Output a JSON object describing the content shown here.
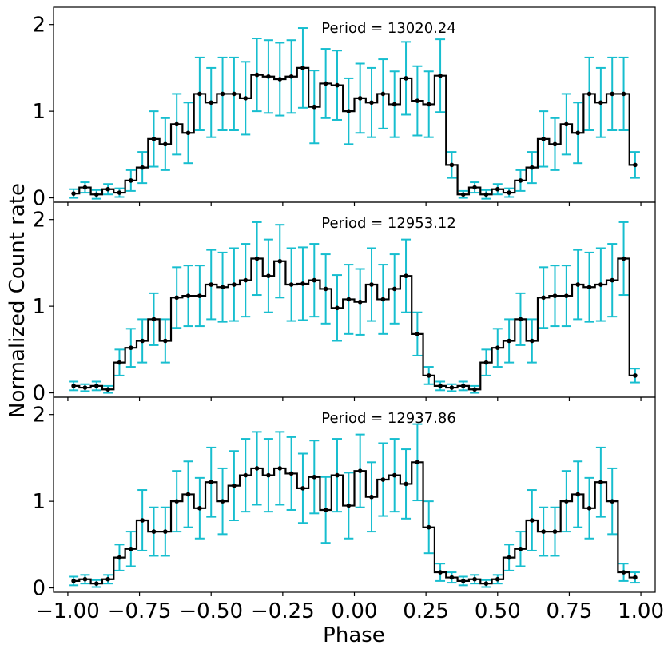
{
  "figure": {
    "ylabel": "Normalized Count rate",
    "xlabel": "Phase",
    "x_tick_labels": [
      "−1.00",
      "−0.75",
      "−0.50",
      "−0.25",
      "0.00",
      "0.25",
      "0.50",
      "0.75",
      "1.00"
    ],
    "colors": {
      "line": "#000000",
      "errorbar": "#17becf",
      "marker": "#000000"
    }
  },
  "chart_data": [
    {
      "type": "line",
      "style": "step with error bars",
      "title": "Period = 13020.24",
      "xlabel": "Phase",
      "ylabel": "Normalized Count rate",
      "xlim": [
        -1.05,
        1.05
      ],
      "ylim": [
        -0.05,
        2.2
      ],
      "yticks": [
        0,
        1,
        2
      ],
      "x": [
        -0.98,
        -0.94,
        -0.9,
        -0.86,
        -0.82,
        -0.78,
        -0.74,
        -0.7,
        -0.66,
        -0.62,
        -0.58,
        -0.54,
        -0.5,
        -0.46,
        -0.42,
        -0.38,
        -0.34,
        -0.3,
        -0.26,
        -0.22,
        -0.18,
        -0.14,
        -0.1,
        -0.06,
        -0.02,
        0.02,
        0.06,
        0.1,
        0.14,
        0.18,
        0.22,
        0.26,
        0.3,
        0.34,
        0.38,
        0.42,
        0.46,
        0.5,
        0.54,
        0.58,
        0.62,
        0.66,
        0.7,
        0.74,
        0.78,
        0.82,
        0.86,
        0.9,
        0.94,
        0.98
      ],
      "y": [
        0.05,
        0.12,
        0.04,
        0.1,
        0.06,
        0.2,
        0.35,
        0.68,
        0.62,
        0.85,
        0.75,
        1.2,
        1.1,
        1.2,
        1.2,
        1.15,
        1.42,
        1.4,
        1.37,
        1.4,
        1.5,
        1.05,
        1.32,
        1.3,
        1.0,
        1.15,
        1.1,
        1.2,
        1.08,
        1.38,
        1.12,
        1.08,
        1.41,
        0.38,
        0.04,
        0.12,
        0.04,
        0.1,
        0.06,
        0.2,
        0.35,
        0.68,
        0.62,
        0.85,
        0.75,
        1.2,
        1.1,
        1.2,
        1.2,
        0.38
      ],
      "yerr": [
        0.05,
        0.06,
        0.05,
        0.06,
        0.05,
        0.12,
        0.18,
        0.32,
        0.3,
        0.35,
        0.35,
        0.42,
        0.4,
        0.42,
        0.42,
        0.42,
        0.42,
        0.42,
        0.42,
        0.42,
        0.46,
        0.42,
        0.4,
        0.4,
        0.38,
        0.4,
        0.4,
        0.4,
        0.38,
        0.42,
        0.4,
        0.38,
        0.42,
        0.15,
        0.04,
        0.06,
        0.05,
        0.06,
        0.05,
        0.12,
        0.18,
        0.32,
        0.3,
        0.35,
        0.35,
        0.42,
        0.4,
        0.42,
        0.42,
        0.15
      ]
    },
    {
      "type": "line",
      "style": "step with error bars",
      "title": "Period = 12953.12",
      "xlabel": "Phase",
      "ylabel": "Normalized Count rate",
      "xlim": [
        -1.05,
        1.05
      ],
      "ylim": [
        -0.05,
        2.2
      ],
      "yticks": [
        0,
        1,
        2
      ],
      "x": [
        -0.98,
        -0.94,
        -0.9,
        -0.86,
        -0.82,
        -0.78,
        -0.74,
        -0.7,
        -0.66,
        -0.62,
        -0.58,
        -0.54,
        -0.5,
        -0.46,
        -0.42,
        -0.38,
        -0.34,
        -0.3,
        -0.26,
        -0.22,
        -0.18,
        -0.14,
        -0.1,
        -0.06,
        -0.02,
        0.02,
        0.06,
        0.1,
        0.14,
        0.18,
        0.22,
        0.26,
        0.3,
        0.34,
        0.38,
        0.42,
        0.46,
        0.5,
        0.54,
        0.58,
        0.62,
        0.66,
        0.7,
        0.74,
        0.78,
        0.82,
        0.86,
        0.9,
        0.94,
        0.98
      ],
      "y": [
        0.08,
        0.06,
        0.08,
        0.04,
        0.35,
        0.52,
        0.6,
        0.85,
        0.6,
        1.1,
        1.12,
        1.12,
        1.25,
        1.22,
        1.25,
        1.3,
        1.55,
        1.35,
        1.52,
        1.25,
        1.26,
        1.3,
        1.2,
        0.98,
        1.08,
        1.05,
        1.25,
        1.08,
        1.2,
        1.35,
        0.68,
        0.2,
        0.08,
        0.06,
        0.08,
        0.04,
        0.35,
        0.52,
        0.6,
        0.85,
        0.6,
        1.1,
        1.12,
        1.12,
        1.25,
        1.22,
        1.25,
        1.3,
        1.55,
        0.2
      ],
      "yerr": [
        0.05,
        0.04,
        0.05,
        0.04,
        0.15,
        0.22,
        0.25,
        0.3,
        0.25,
        0.35,
        0.35,
        0.35,
        0.4,
        0.4,
        0.42,
        0.42,
        0.42,
        0.42,
        0.42,
        0.42,
        0.42,
        0.42,
        0.4,
        0.38,
        0.4,
        0.38,
        0.42,
        0.4,
        0.4,
        0.42,
        0.25,
        0.1,
        0.05,
        0.04,
        0.05,
        0.04,
        0.15,
        0.22,
        0.25,
        0.3,
        0.25,
        0.35,
        0.35,
        0.35,
        0.4,
        0.4,
        0.42,
        0.42,
        0.42,
        0.08
      ]
    },
    {
      "type": "line",
      "style": "step with error bars",
      "title": "Period = 12937.86",
      "xlabel": "Phase",
      "ylabel": "Normalized Count rate",
      "xlim": [
        -1.05,
        1.05
      ],
      "ylim": [
        -0.05,
        2.2
      ],
      "yticks": [
        0,
        1,
        2
      ],
      "x": [
        -0.98,
        -0.94,
        -0.9,
        -0.86,
        -0.82,
        -0.78,
        -0.74,
        -0.7,
        -0.66,
        -0.62,
        -0.58,
        -0.54,
        -0.5,
        -0.46,
        -0.42,
        -0.38,
        -0.34,
        -0.3,
        -0.26,
        -0.22,
        -0.18,
        -0.14,
        -0.1,
        -0.06,
        -0.02,
        0.02,
        0.06,
        0.1,
        0.14,
        0.18,
        0.22,
        0.26,
        0.3,
        0.34,
        0.38,
        0.42,
        0.46,
        0.5,
        0.54,
        0.58,
        0.62,
        0.66,
        0.7,
        0.74,
        0.78,
        0.82,
        0.86,
        0.9,
        0.94,
        0.98
      ],
      "y": [
        0.08,
        0.1,
        0.05,
        0.1,
        0.35,
        0.45,
        0.78,
        0.65,
        0.65,
        1.0,
        1.08,
        0.92,
        1.22,
        1.0,
        1.18,
        1.3,
        1.38,
        1.3,
        1.38,
        1.32,
        1.15,
        1.28,
        0.9,
        1.3,
        0.95,
        1.35,
        1.05,
        1.25,
        1.3,
        1.2,
        1.45,
        0.7,
        0.18,
        0.12,
        0.08,
        0.1,
        0.05,
        0.1,
        0.35,
        0.45,
        0.78,
        0.65,
        0.65,
        1.0,
        1.08,
        0.92,
        1.22,
        1.0,
        0.18,
        0.12
      ],
      "yerr": [
        0.05,
        0.05,
        0.04,
        0.05,
        0.15,
        0.2,
        0.35,
        0.28,
        0.28,
        0.35,
        0.38,
        0.35,
        0.4,
        0.38,
        0.4,
        0.42,
        0.42,
        0.42,
        0.42,
        0.42,
        0.4,
        0.42,
        0.38,
        0.42,
        0.38,
        0.42,
        0.4,
        0.42,
        0.42,
        0.4,
        0.44,
        0.3,
        0.1,
        0.06,
        0.05,
        0.05,
        0.04,
        0.05,
        0.15,
        0.2,
        0.35,
        0.28,
        0.28,
        0.35,
        0.38,
        0.35,
        0.4,
        0.38,
        0.1,
        0.06
      ]
    }
  ]
}
